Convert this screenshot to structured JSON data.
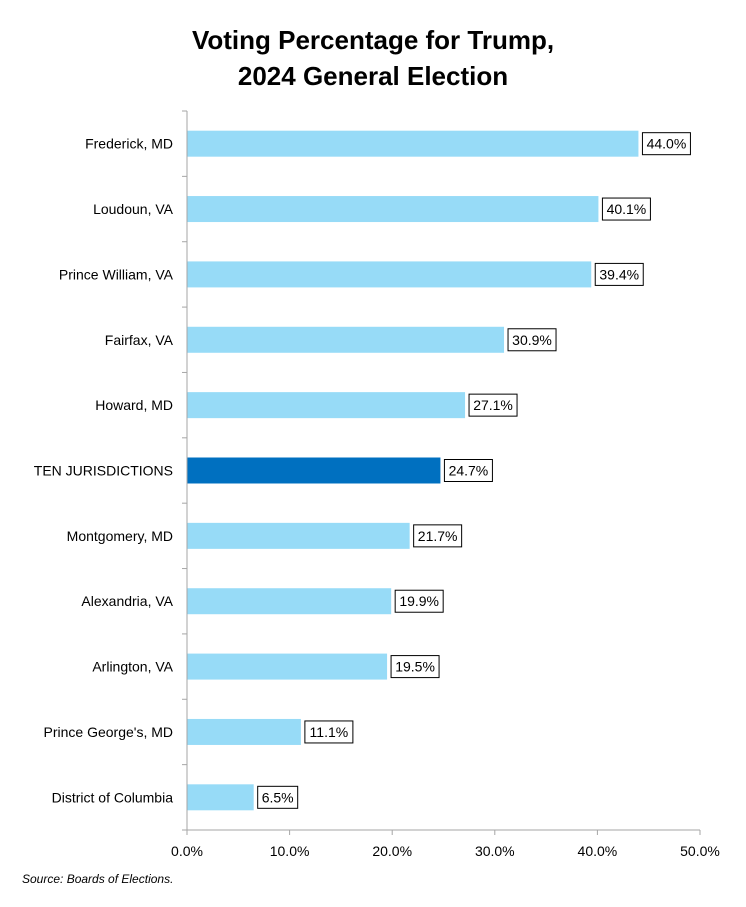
{
  "chart_data": {
    "type": "bar",
    "orientation": "horizontal",
    "title_lines": [
      "Voting Percentage for Trump,",
      "2024 General Election"
    ],
    "categories": [
      "Frederick, MD",
      "Loudoun, VA",
      "Prince William, VA",
      "Fairfax, VA",
      "Howard, MD",
      "TEN JURISDICTIONS",
      "Montgomery, MD",
      "Alexandria, VA",
      "Arlington, VA",
      "Prince George's, MD",
      "District of Columbia"
    ],
    "values": [
      44.0,
      40.1,
      39.4,
      30.9,
      27.1,
      24.7,
      21.7,
      19.9,
      19.5,
      11.1,
      6.5
    ],
    "value_labels": [
      "44.0%",
      "40.1%",
      "39.4%",
      "30.9%",
      "27.1%",
      "24.7%",
      "21.7%",
      "19.9%",
      "19.5%",
      "11.1%",
      "6.5%"
    ],
    "highlight_category": "TEN JURISDICTIONS",
    "xlim": [
      0,
      50
    ],
    "xticks": [
      0,
      10,
      20,
      30,
      40,
      50
    ],
    "xtick_labels": [
      "0.0%",
      "10.0%",
      "20.0%",
      "30.0%",
      "40.0%",
      "50.0%"
    ],
    "grid": false,
    "colors": {
      "bar": "#97DBF7",
      "highlight": "#0070C0",
      "axis": "#A6A6A6"
    }
  },
  "source_note": "Source: Boards of Elections."
}
